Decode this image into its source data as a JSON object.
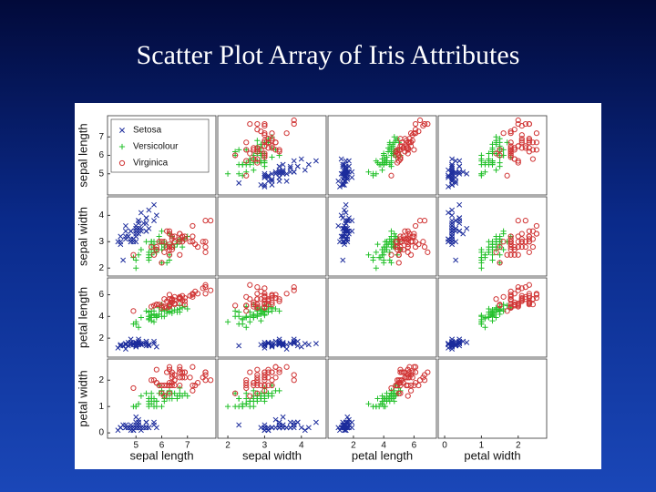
{
  "chart_data": {
    "type": "scatter_matrix",
    "title": "Scatter Plot Array of Iris Attributes",
    "axes": [
      {
        "label": "sepal length",
        "lim": [
          4,
          8
        ],
        "ticks": [
          5,
          6,
          7
        ]
      },
      {
        "label": "sepal width",
        "lim": [
          1.8,
          4.6
        ],
        "ticks": [
          2,
          3,
          4
        ]
      },
      {
        "label": "petal length",
        "lim": [
          0.5,
          7.3
        ],
        "ticks": [
          2,
          4,
          6
        ]
      },
      {
        "label": "petal width",
        "lim": [
          -0.1,
          2.7
        ],
        "ticks": [
          0,
          1,
          2
        ]
      }
    ],
    "series": [
      {
        "name": "Setosa",
        "color": "#1c2c9c",
        "marker": "x",
        "values": [
          [
            5.1,
            3.5,
            1.4,
            0.2
          ],
          [
            4.9,
            3.0,
            1.4,
            0.2
          ],
          [
            4.7,
            3.2,
            1.3,
            0.2
          ],
          [
            4.6,
            3.1,
            1.5,
            0.2
          ],
          [
            5.0,
            3.6,
            1.4,
            0.2
          ],
          [
            5.4,
            3.9,
            1.7,
            0.4
          ],
          [
            4.6,
            3.4,
            1.4,
            0.3
          ],
          [
            5.0,
            3.4,
            1.5,
            0.2
          ],
          [
            4.4,
            2.9,
            1.4,
            0.2
          ],
          [
            4.9,
            3.1,
            1.5,
            0.1
          ],
          [
            5.4,
            3.7,
            1.5,
            0.2
          ],
          [
            4.8,
            3.4,
            1.6,
            0.2
          ],
          [
            4.8,
            3.0,
            1.4,
            0.1
          ],
          [
            4.3,
            3.0,
            1.1,
            0.1
          ],
          [
            5.8,
            4.0,
            1.2,
            0.2
          ],
          [
            5.7,
            4.4,
            1.5,
            0.4
          ],
          [
            5.4,
            3.9,
            1.3,
            0.4
          ],
          [
            5.1,
            3.5,
            1.4,
            0.3
          ],
          [
            5.7,
            3.8,
            1.7,
            0.3
          ],
          [
            5.1,
            3.8,
            1.5,
            0.3
          ],
          [
            5.4,
            3.4,
            1.7,
            0.2
          ],
          [
            5.1,
            3.7,
            1.5,
            0.4
          ],
          [
            4.6,
            3.6,
            1.0,
            0.2
          ],
          [
            5.1,
            3.3,
            1.7,
            0.5
          ],
          [
            4.8,
            3.4,
            1.9,
            0.2
          ],
          [
            5.0,
            3.0,
            1.6,
            0.2
          ],
          [
            5.0,
            3.4,
            1.6,
            0.4
          ],
          [
            5.2,
            3.5,
            1.5,
            0.2
          ],
          [
            5.2,
            3.4,
            1.4,
            0.2
          ],
          [
            4.7,
            3.2,
            1.6,
            0.2
          ],
          [
            4.8,
            3.1,
            1.6,
            0.2
          ],
          [
            5.4,
            3.4,
            1.5,
            0.4
          ],
          [
            5.2,
            4.1,
            1.5,
            0.1
          ],
          [
            5.5,
            4.2,
            1.4,
            0.2
          ],
          [
            4.9,
            3.1,
            1.5,
            0.1
          ],
          [
            5.0,
            3.2,
            1.2,
            0.2
          ],
          [
            5.5,
            3.5,
            1.3,
            0.2
          ],
          [
            4.9,
            3.1,
            1.5,
            0.1
          ],
          [
            4.4,
            3.0,
            1.3,
            0.2
          ],
          [
            5.1,
            3.4,
            1.5,
            0.2
          ],
          [
            5.0,
            3.5,
            1.3,
            0.3
          ],
          [
            4.5,
            2.3,
            1.3,
            0.3
          ],
          [
            4.4,
            3.2,
            1.3,
            0.2
          ],
          [
            5.0,
            3.5,
            1.6,
            0.6
          ],
          [
            5.1,
            3.8,
            1.9,
            0.4
          ],
          [
            4.8,
            3.0,
            1.4,
            0.3
          ],
          [
            5.1,
            3.8,
            1.6,
            0.2
          ],
          [
            4.6,
            3.2,
            1.4,
            0.2
          ],
          [
            5.3,
            3.7,
            1.5,
            0.2
          ],
          [
            5.0,
            3.3,
            1.4,
            0.2
          ]
        ]
      },
      {
        "name": "Versicolour",
        "color": "#22c02a",
        "marker": "plus",
        "values": [
          [
            7.0,
            3.2,
            4.7,
            1.4
          ],
          [
            6.4,
            3.2,
            4.5,
            1.5
          ],
          [
            6.9,
            3.1,
            4.9,
            1.5
          ],
          [
            5.5,
            2.3,
            4.0,
            1.3
          ],
          [
            6.5,
            2.8,
            4.6,
            1.5
          ],
          [
            5.7,
            2.8,
            4.5,
            1.3
          ],
          [
            6.3,
            3.3,
            4.7,
            1.6
          ],
          [
            4.9,
            2.4,
            3.3,
            1.0
          ],
          [
            6.6,
            2.9,
            4.6,
            1.3
          ],
          [
            5.2,
            2.7,
            3.9,
            1.4
          ],
          [
            5.0,
            2.0,
            3.5,
            1.0
          ],
          [
            5.9,
            3.0,
            4.2,
            1.5
          ],
          [
            6.0,
            2.2,
            4.0,
            1.0
          ],
          [
            6.1,
            2.9,
            4.7,
            1.4
          ],
          [
            5.6,
            2.9,
            3.6,
            1.3
          ],
          [
            6.7,
            3.1,
            4.4,
            1.4
          ],
          [
            5.6,
            3.0,
            4.5,
            1.5
          ],
          [
            5.8,
            2.7,
            4.1,
            1.0
          ],
          [
            6.2,
            2.2,
            4.5,
            1.5
          ],
          [
            5.6,
            2.5,
            3.9,
            1.1
          ],
          [
            5.9,
            3.2,
            4.8,
            1.8
          ],
          [
            6.1,
            2.8,
            4.0,
            1.3
          ],
          [
            6.3,
            2.5,
            4.9,
            1.5
          ],
          [
            6.1,
            2.8,
            4.7,
            1.2
          ],
          [
            6.4,
            2.9,
            4.3,
            1.3
          ],
          [
            6.6,
            3.0,
            4.4,
            1.4
          ],
          [
            6.8,
            2.8,
            4.8,
            1.4
          ],
          [
            6.7,
            3.0,
            5.0,
            1.7
          ],
          [
            6.0,
            2.9,
            4.5,
            1.5
          ],
          [
            5.7,
            2.6,
            3.5,
            1.0
          ],
          [
            5.5,
            2.4,
            3.8,
            1.1
          ],
          [
            5.5,
            2.4,
            3.7,
            1.0
          ],
          [
            5.8,
            2.7,
            3.9,
            1.2
          ],
          [
            6.0,
            2.7,
            5.1,
            1.6
          ],
          [
            5.4,
            3.0,
            4.5,
            1.5
          ],
          [
            6.0,
            3.4,
            4.5,
            1.6
          ],
          [
            6.7,
            3.1,
            4.7,
            1.5
          ],
          [
            6.3,
            2.3,
            4.4,
            1.3
          ],
          [
            5.6,
            3.0,
            4.1,
            1.3
          ],
          [
            5.5,
            2.5,
            4.0,
            1.3
          ],
          [
            5.5,
            2.6,
            4.4,
            1.2
          ],
          [
            6.1,
            3.0,
            4.6,
            1.4
          ],
          [
            5.8,
            2.6,
            4.0,
            1.2
          ],
          [
            5.0,
            2.3,
            3.3,
            1.0
          ],
          [
            5.6,
            2.7,
            4.2,
            1.3
          ],
          [
            5.7,
            3.0,
            4.2,
            1.2
          ],
          [
            5.7,
            2.9,
            4.2,
            1.3
          ],
          [
            6.2,
            2.9,
            4.3,
            1.3
          ],
          [
            5.1,
            2.5,
            3.0,
            1.1
          ],
          [
            5.7,
            2.8,
            4.1,
            1.3
          ]
        ]
      },
      {
        "name": "Virginica",
        "color": "#d03434",
        "marker": "circle",
        "values": [
          [
            6.3,
            3.3,
            6.0,
            2.5
          ],
          [
            5.8,
            2.7,
            5.1,
            1.9
          ],
          [
            7.1,
            3.0,
            5.9,
            2.1
          ],
          [
            6.3,
            2.9,
            5.6,
            1.8
          ],
          [
            6.5,
            3.0,
            5.8,
            2.2
          ],
          [
            7.6,
            3.0,
            6.6,
            2.1
          ],
          [
            4.9,
            2.5,
            4.5,
            1.7
          ],
          [
            7.3,
            2.9,
            6.3,
            1.8
          ],
          [
            6.7,
            2.5,
            5.8,
            1.8
          ],
          [
            7.2,
            3.6,
            6.1,
            2.5
          ],
          [
            6.5,
            3.2,
            5.1,
            2.0
          ],
          [
            6.4,
            2.7,
            5.3,
            1.9
          ],
          [
            6.8,
            3.0,
            5.5,
            2.1
          ],
          [
            5.7,
            2.5,
            5.0,
            2.0
          ],
          [
            5.8,
            2.8,
            5.1,
            2.4
          ],
          [
            6.4,
            3.2,
            5.3,
            2.3
          ],
          [
            6.5,
            3.0,
            5.5,
            1.8
          ],
          [
            7.7,
            3.8,
            6.7,
            2.2
          ],
          [
            7.7,
            2.6,
            6.9,
            2.3
          ],
          [
            6.0,
            2.2,
            5.0,
            1.5
          ],
          [
            6.9,
            3.2,
            5.7,
            2.3
          ],
          [
            5.6,
            2.8,
            4.9,
            2.0
          ],
          [
            7.7,
            2.8,
            6.7,
            2.0
          ],
          [
            6.3,
            2.7,
            4.9,
            1.8
          ],
          [
            6.7,
            3.3,
            5.7,
            2.1
          ],
          [
            7.2,
            3.2,
            6.0,
            1.8
          ],
          [
            6.2,
            2.8,
            4.8,
            1.8
          ],
          [
            6.1,
            3.0,
            4.9,
            1.8
          ],
          [
            6.4,
            2.8,
            5.6,
            2.1
          ],
          [
            7.2,
            3.0,
            5.8,
            1.6
          ],
          [
            7.4,
            2.8,
            6.1,
            1.9
          ],
          [
            7.9,
            3.8,
            6.4,
            2.0
          ],
          [
            6.4,
            2.8,
            5.6,
            2.2
          ],
          [
            6.3,
            2.8,
            5.1,
            1.5
          ],
          [
            6.1,
            2.6,
            5.6,
            1.4
          ],
          [
            7.7,
            3.0,
            6.1,
            2.3
          ],
          [
            6.3,
            3.4,
            5.6,
            2.4
          ],
          [
            6.4,
            3.1,
            5.5,
            1.8
          ],
          [
            6.0,
            3.0,
            4.8,
            1.8
          ],
          [
            6.9,
            3.1,
            5.4,
            2.1
          ],
          [
            6.7,
            3.1,
            5.6,
            2.4
          ],
          [
            6.9,
            3.1,
            5.1,
            2.3
          ],
          [
            5.8,
            2.7,
            5.1,
            1.9
          ],
          [
            6.8,
            3.2,
            5.9,
            2.3
          ],
          [
            6.7,
            3.3,
            5.7,
            2.5
          ],
          [
            6.7,
            3.0,
            5.2,
            2.3
          ],
          [
            6.3,
            2.5,
            5.0,
            1.9
          ],
          [
            6.5,
            3.0,
            5.2,
            2.0
          ],
          [
            6.2,
            3.4,
            5.4,
            2.3
          ],
          [
            5.9,
            3.0,
            5.1,
            1.8
          ]
        ]
      }
    ]
  }
}
